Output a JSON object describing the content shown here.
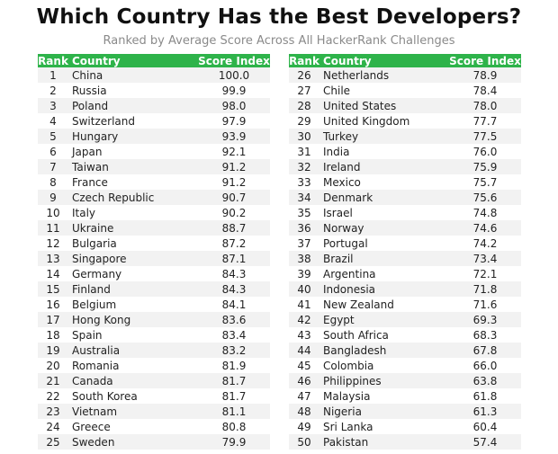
{
  "title": "Which Country Has the Best Developers?",
  "subtitle": "Ranked by Average Score Across All HackerRank Challenges",
  "headers": {
    "rank": "Rank",
    "country": "Country",
    "score": "Score Index"
  },
  "colors": {
    "header_bg": "#2eb34a",
    "stripe": "#f2f2f2"
  },
  "left_rows": [
    {
      "rank": "1",
      "country": "China",
      "score": "100.0"
    },
    {
      "rank": "2",
      "country": "Russia",
      "score": "99.9"
    },
    {
      "rank": "3",
      "country": "Poland",
      "score": "98.0"
    },
    {
      "rank": "4",
      "country": "Switzerland",
      "score": "97.9"
    },
    {
      "rank": "5",
      "country": "Hungary",
      "score": "93.9"
    },
    {
      "rank": "6",
      "country": "Japan",
      "score": "92.1"
    },
    {
      "rank": "7",
      "country": "Taiwan",
      "score": "91.2"
    },
    {
      "rank": "8",
      "country": "France",
      "score": "91.2"
    },
    {
      "rank": "9",
      "country": "Czech Republic",
      "score": "90.7"
    },
    {
      "rank": "10",
      "country": "Italy",
      "score": "90.2"
    },
    {
      "rank": "11",
      "country": "Ukraine",
      "score": "88.7"
    },
    {
      "rank": "12",
      "country": "Bulgaria",
      "score": "87.2"
    },
    {
      "rank": "13",
      "country": "Singapore",
      "score": "87.1"
    },
    {
      "rank": "14",
      "country": "Germany",
      "score": "84.3"
    },
    {
      "rank": "15",
      "country": "Finland",
      "score": "84.3"
    },
    {
      "rank": "16",
      "country": "Belgium",
      "score": "84.1"
    },
    {
      "rank": "17",
      "country": "Hong Kong",
      "score": "83.6"
    },
    {
      "rank": "18",
      "country": "Spain",
      "score": "83.4"
    },
    {
      "rank": "19",
      "country": "Australia",
      "score": "83.2"
    },
    {
      "rank": "20",
      "country": "Romania",
      "score": "81.9"
    },
    {
      "rank": "21",
      "country": "Canada",
      "score": "81.7"
    },
    {
      "rank": "22",
      "country": "South Korea",
      "score": "81.7"
    },
    {
      "rank": "23",
      "country": "Vietnam",
      "score": "81.1"
    },
    {
      "rank": "24",
      "country": "Greece",
      "score": "80.8"
    },
    {
      "rank": "25",
      "country": "Sweden",
      "score": "79.9"
    }
  ],
  "right_rows": [
    {
      "rank": "26",
      "country": "Netherlands",
      "score": "78.9"
    },
    {
      "rank": "27",
      "country": "Chile",
      "score": "78.4"
    },
    {
      "rank": "28",
      "country": "United States",
      "score": "78.0"
    },
    {
      "rank": "29",
      "country": "United Kingdom",
      "score": "77.7"
    },
    {
      "rank": "30",
      "country": "Turkey",
      "score": "77.5"
    },
    {
      "rank": "31",
      "country": "India",
      "score": "76.0"
    },
    {
      "rank": "32",
      "country": "Ireland",
      "score": "75.9"
    },
    {
      "rank": "33",
      "country": "Mexico",
      "score": "75.7"
    },
    {
      "rank": "34",
      "country": "Denmark",
      "score": "75.6"
    },
    {
      "rank": "35",
      "country": "Israel",
      "score": "74.8"
    },
    {
      "rank": "36",
      "country": "Norway",
      "score": "74.6"
    },
    {
      "rank": "37",
      "country": "Portugal",
      "score": "74.2"
    },
    {
      "rank": "38",
      "country": "Brazil",
      "score": "73.4"
    },
    {
      "rank": "39",
      "country": "Argentina",
      "score": "72.1"
    },
    {
      "rank": "40",
      "country": "Indonesia",
      "score": "71.8"
    },
    {
      "rank": "41",
      "country": "New Zealand",
      "score": "71.6"
    },
    {
      "rank": "42",
      "country": "Egypt",
      "score": "69.3"
    },
    {
      "rank": "43",
      "country": "South Africa",
      "score": "68.3"
    },
    {
      "rank": "44",
      "country": "Bangladesh",
      "score": "67.8"
    },
    {
      "rank": "45",
      "country": "Colombia",
      "score": "66.0"
    },
    {
      "rank": "46",
      "country": "Philippines",
      "score": "63.8"
    },
    {
      "rank": "47",
      "country": "Malaysia",
      "score": "61.8"
    },
    {
      "rank": "48",
      "country": "Nigeria",
      "score": "61.3"
    },
    {
      "rank": "49",
      "country": "Sri Lanka",
      "score": "60.4"
    },
    {
      "rank": "50",
      "country": "Pakistan",
      "score": "57.4"
    }
  ]
}
